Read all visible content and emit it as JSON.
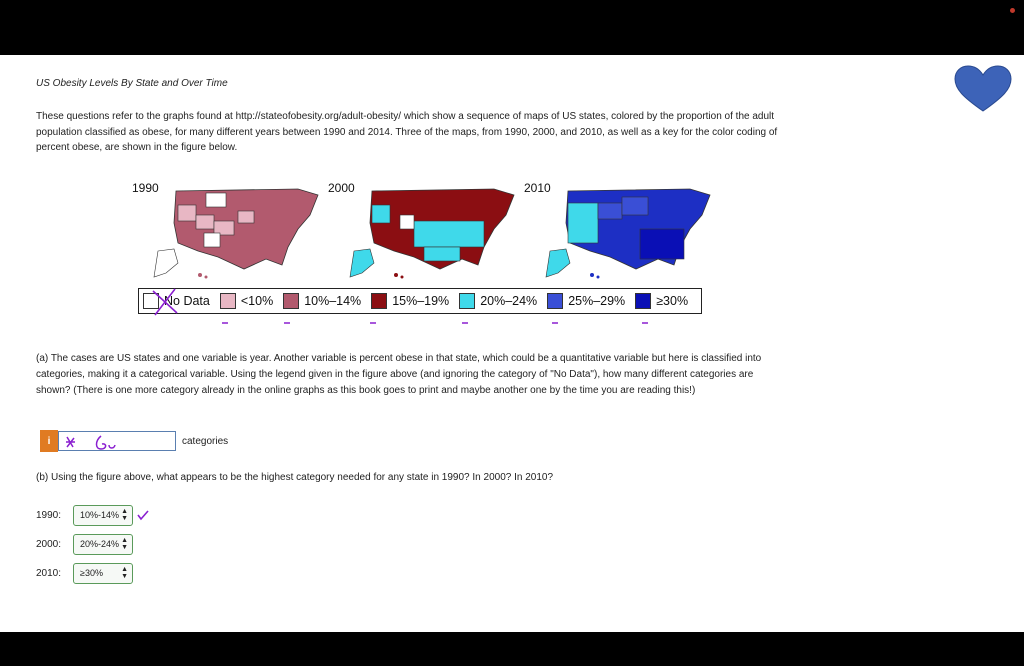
{
  "title": "US Obesity Levels By State and Over Time",
  "intro": "These questions refer to the graphs found at http://stateofobesity.org/adult-obesity/ which show a sequence of maps of US states, colored by the proportion of the adult population classified as obese, for many different years between 1990 and 2014. Three of the maps, from 1990, 2000, and 2010, as well as a key for the color coding of percent obese, are shown in the figure below.",
  "maps": [
    {
      "year": "1990",
      "fill": "#b25a6e",
      "light": "#e8b7c4"
    },
    {
      "year": "2000",
      "fill": "#8b0e12",
      "light": "#3fd9ea"
    },
    {
      "year": "2010",
      "fill": "#1d2fc4",
      "light": "#3fd9ea"
    }
  ],
  "legend": [
    {
      "label": "No Data",
      "color": "#ffffff"
    },
    {
      "label": "<10%",
      "color": "#e8b7c4"
    },
    {
      "label": "10%–14%",
      "color": "#b25a6e"
    },
    {
      "label": "15%–19%",
      "color": "#8b0e12"
    },
    {
      "label": "20%–24%",
      "color": "#3fd9ea"
    },
    {
      "label": "25%–29%",
      "color": "#3a4fd6"
    },
    {
      "label": "≥30%",
      "color": "#0a0fb5"
    }
  ],
  "question_a": "(a) The cases are US states and one variable is year. Another variable is percent obese in that state, which could be a quantitative variable but here is classified into categories, making it a categorical variable. Using the legend given in the figure above (and ignoring the category of \"No Data\"), how many different categories are shown? (There is one more category already in the online graphs as this book goes to print and maybe another one by the time you are reading this!)",
  "answer_a": {
    "info_label": "i",
    "value": "",
    "suffix": "categories"
  },
  "question_b": "(b) Using the figure above, what appears to be the highest category needed for any state in 1990? In 2000? In 2010?",
  "answers_b": [
    {
      "label": "1990:",
      "value": "10%-14%"
    },
    {
      "label": "2000:",
      "value": "20%-24%"
    },
    {
      "label": "2010:",
      "value": "≥30%"
    }
  ],
  "colors": {
    "accent": "#e07b22",
    "heart": "#3d63b8",
    "annotation": "#8a1fd0"
  }
}
